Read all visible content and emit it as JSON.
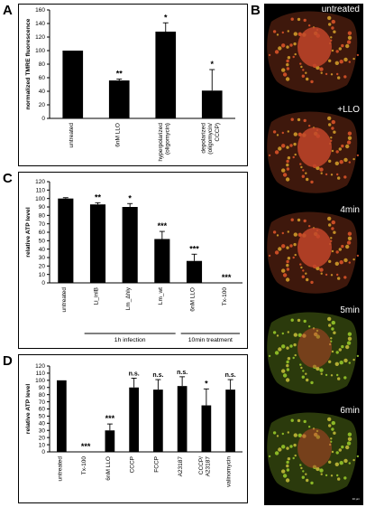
{
  "panels": {
    "a": "A",
    "b": "B",
    "c": "C",
    "d": "D"
  },
  "chart_data": [
    {
      "type": "bar",
      "ylabel": "normalized TMRE fluorescence",
      "ylim": [
        0,
        160
      ],
      "yticks": [
        0,
        20,
        40,
        60,
        80,
        100,
        120,
        140,
        160
      ],
      "categories": [
        "untreated",
        "6nM LLO",
        "hyperpolarized (oligomycin)",
        "depolarized (oligomycin/ CCCP)"
      ],
      "category_lines": [
        [
          "untreated"
        ],
        [
          "6nM LLO"
        ],
        [
          "hyperpolarized",
          "(oligomycin)"
        ],
        [
          "depolarized",
          "(oligomycin/",
          "CCCP)"
        ]
      ],
      "values": [
        100,
        56,
        128,
        41
      ],
      "errors": [
        0,
        2,
        13,
        31
      ],
      "significance": [
        "",
        "**",
        "*",
        "*"
      ],
      "grid": false
    },
    {
      "type": "bar",
      "ylabel": "relative ATP level",
      "ylim": [
        0,
        120
      ],
      "yticks": [
        0,
        10,
        20,
        30,
        40,
        50,
        60,
        70,
        80,
        90,
        100,
        110,
        120
      ],
      "categories": [
        "untreated",
        "Li_inlB",
        "Lm_Δhly",
        "Lm_wt",
        "6nM LLO",
        "Tx-100"
      ],
      "values": [
        100,
        93,
        90,
        52,
        26,
        0
      ],
      "errors": [
        1,
        2,
        4,
        9,
        8,
        0
      ],
      "significance": [
        "",
        "**",
        "*",
        "***",
        "***",
        "***"
      ],
      "groups": [
        {
          "label": "1h infection",
          "from": 1,
          "to": 3
        },
        {
          "label": "10min treatment",
          "from": 4,
          "to": 5
        }
      ],
      "grid": false
    },
    {
      "type": "bar",
      "ylabel": "relative ATP level",
      "ylim": [
        0,
        120
      ],
      "yticks": [
        0,
        10,
        20,
        30,
        40,
        50,
        60,
        70,
        80,
        90,
        100,
        110,
        120
      ],
      "categories": [
        "untreated",
        "Tx-100",
        "6nM LLO",
        "CCCP",
        "FCCP",
        "A23187",
        "CCCP/ A23187",
        "valinomycin"
      ],
      "category_lines": [
        [
          "untreated"
        ],
        [
          "Tx-100"
        ],
        [
          "6nM LLO"
        ],
        [
          "CCCP"
        ],
        [
          "FCCP"
        ],
        [
          "A23187"
        ],
        [
          "CCCP/",
          "A23187"
        ],
        [
          "valinomycin"
        ]
      ],
      "values": [
        100,
        0,
        30,
        90,
        87,
        92,
        65,
        87
      ],
      "errors": [
        0,
        0,
        9,
        13,
        14,
        13,
        23,
        14
      ],
      "significance": [
        "",
        "***",
        "***",
        "n.s.",
        "n.s.",
        "n.s.",
        "*",
        "n.s."
      ],
      "grid": false
    }
  ],
  "micrographs": {
    "labels": [
      "untreated",
      "+LLO",
      "4min",
      "5min",
      "6min"
    ],
    "scale_bar": "10 µm",
    "colors": {
      "background": "#000000",
      "mito_red": "#e0562a",
      "mito_green": "#9ccf2c",
      "nucleus": "#c2452a"
    }
  }
}
